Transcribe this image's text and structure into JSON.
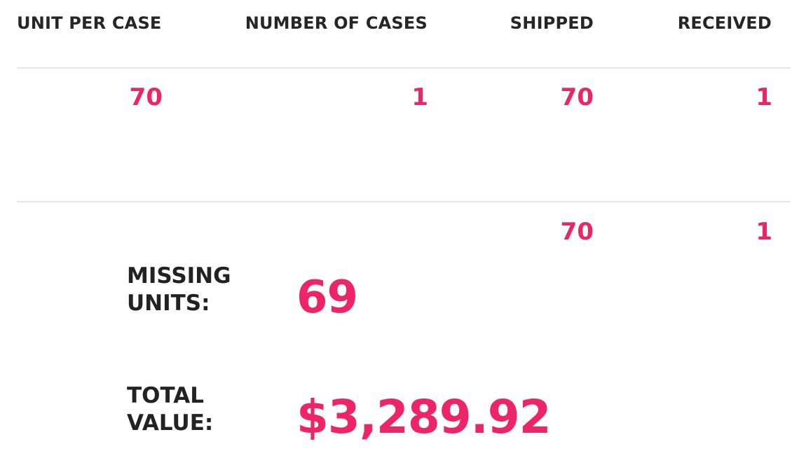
{
  "table": {
    "headers": {
      "unit_per_case": "UNIT PER CASE",
      "number_of_cases": "NUMBER OF CASES",
      "shipped": "SHIPPED",
      "received": "RECEIVED"
    },
    "rows": [
      {
        "unit_per_case": "70",
        "number_of_cases": "1",
        "shipped": "70",
        "received": "1"
      }
    ],
    "totals": {
      "shipped": "70",
      "received": "1"
    }
  },
  "summary": {
    "missing_units": {
      "label_line1": "MISSING",
      "label_line2": "UNITS:",
      "value": "69"
    },
    "total_value": {
      "label_line1": "TOTAL",
      "label_line2": "VALUE:",
      "value": "$3,289.92"
    }
  },
  "colors": {
    "accent": "#ec2566",
    "text": "#262626",
    "rule": "#e6e6e6"
  }
}
